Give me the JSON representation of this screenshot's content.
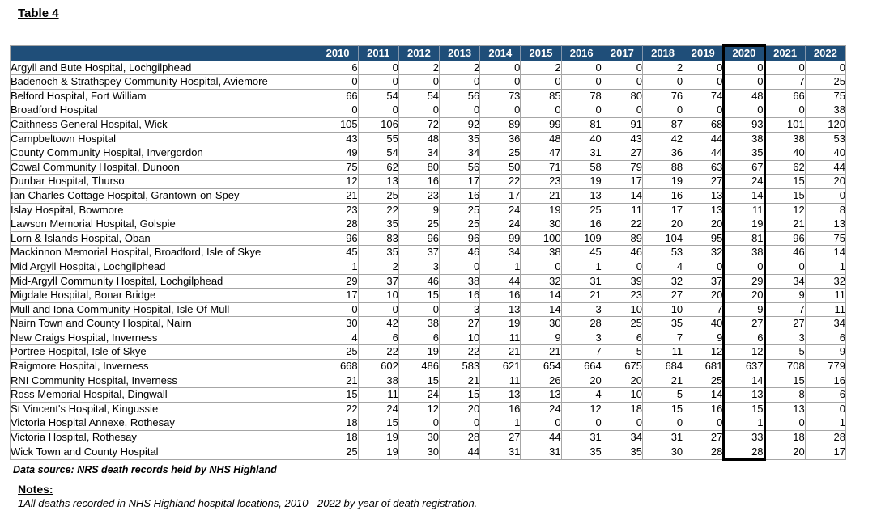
{
  "page": {
    "title": "Table 4",
    "data_source": "Data source: NRS death records held by NHS Highland",
    "notes_heading": "Notes:",
    "note_1": "1All deaths recorded in NHS Highland hospital locations, 2010 - 2022 by year of death registration."
  },
  "colors": {
    "header_bg": "#1F4E79",
    "header_text": "#FFFFFF",
    "grid_line": "#A6A6A6",
    "highlight_box": "#000000"
  },
  "chart_data": {
    "type": "table",
    "title": "Table 4",
    "row_header_label": "",
    "highlighted_column": "2020",
    "columns": [
      "2010",
      "2011",
      "2012",
      "2013",
      "2014",
      "2015",
      "2016",
      "2017",
      "2018",
      "2019",
      "2020",
      "2021",
      "2022"
    ],
    "rows": [
      {
        "hospital": "Argyll and Bute Hospital, Lochgilphead",
        "values": [
          6,
          0,
          2,
          2,
          0,
          2,
          0,
          0,
          2,
          0,
          0,
          0,
          0
        ]
      },
      {
        "hospital": "Badenoch & Strathspey Community Hospital, Aviemore",
        "values": [
          0,
          0,
          0,
          0,
          0,
          0,
          0,
          0,
          0,
          0,
          0,
          7,
          25
        ]
      },
      {
        "hospital": "Belford Hospital, Fort William",
        "values": [
          66,
          54,
          54,
          56,
          73,
          85,
          78,
          80,
          76,
          74,
          48,
          66,
          75
        ]
      },
      {
        "hospital": "Broadford Hospital",
        "values": [
          0,
          0,
          0,
          0,
          0,
          0,
          0,
          0,
          0,
          0,
          0,
          0,
          38
        ]
      },
      {
        "hospital": "Caithness General Hospital, Wick",
        "values": [
          105,
          106,
          72,
          92,
          89,
          99,
          81,
          91,
          87,
          68,
          93,
          101,
          120
        ]
      },
      {
        "hospital": "Campbeltown Hospital",
        "values": [
          43,
          55,
          48,
          35,
          36,
          48,
          40,
          43,
          42,
          44,
          38,
          38,
          53
        ]
      },
      {
        "hospital": "County Community Hospital, Invergordon",
        "values": [
          49,
          54,
          34,
          34,
          25,
          47,
          31,
          27,
          36,
          44,
          35,
          40,
          40
        ]
      },
      {
        "hospital": "Cowal Community Hospital, Dunoon",
        "values": [
          75,
          62,
          80,
          56,
          50,
          71,
          58,
          79,
          88,
          63,
          67,
          62,
          44
        ]
      },
      {
        "hospital": "Dunbar Hospital, Thurso",
        "values": [
          12,
          13,
          16,
          17,
          22,
          23,
          19,
          17,
          19,
          27,
          24,
          15,
          20
        ]
      },
      {
        "hospital": "Ian Charles Cottage Hospital, Grantown-on-Spey",
        "values": [
          21,
          25,
          23,
          16,
          17,
          21,
          13,
          14,
          16,
          13,
          14,
          15,
          0
        ]
      },
      {
        "hospital": "Islay Hospital, Bowmore",
        "values": [
          23,
          22,
          9,
          25,
          24,
          19,
          25,
          11,
          17,
          13,
          11,
          12,
          8
        ]
      },
      {
        "hospital": "Lawson Memorial Hospital, Golspie",
        "values": [
          28,
          35,
          25,
          25,
          24,
          30,
          16,
          22,
          20,
          20,
          19,
          21,
          13
        ]
      },
      {
        "hospital": "Lorn & Islands Hospital, Oban",
        "values": [
          96,
          83,
          96,
          96,
          99,
          100,
          109,
          89,
          104,
          95,
          81,
          96,
          75
        ]
      },
      {
        "hospital": "Mackinnon Memorial Hospital, Broadford, Isle of Skye",
        "values": [
          45,
          35,
          37,
          46,
          34,
          38,
          45,
          46,
          53,
          32,
          38,
          46,
          14
        ]
      },
      {
        "hospital": "Mid Argyll Hospital, Lochgilphead",
        "values": [
          1,
          2,
          3,
          0,
          1,
          0,
          1,
          0,
          4,
          0,
          0,
          0,
          1
        ]
      },
      {
        "hospital": "Mid-Argyll Community Hospital, Lochgilphead",
        "values": [
          29,
          37,
          46,
          38,
          44,
          32,
          31,
          39,
          32,
          37,
          29,
          34,
          32
        ]
      },
      {
        "hospital": "Migdale Hospital, Bonar Bridge",
        "values": [
          17,
          10,
          15,
          16,
          16,
          14,
          21,
          23,
          27,
          20,
          20,
          9,
          11
        ]
      },
      {
        "hospital": "Mull and Iona Community Hospital, Isle Of Mull",
        "values": [
          0,
          0,
          0,
          3,
          13,
          14,
          3,
          10,
          10,
          7,
          9,
          7,
          11
        ]
      },
      {
        "hospital": "Nairn Town and County Hospital, Nairn",
        "values": [
          30,
          42,
          38,
          27,
          19,
          30,
          28,
          25,
          35,
          40,
          27,
          27,
          34
        ]
      },
      {
        "hospital": "New Craigs Hospital, Inverness",
        "values": [
          4,
          6,
          6,
          10,
          11,
          9,
          3,
          6,
          7,
          9,
          6,
          3,
          6
        ]
      },
      {
        "hospital": "Portree Hospital, Isle of Skye",
        "values": [
          25,
          22,
          19,
          22,
          21,
          21,
          7,
          5,
          11,
          12,
          12,
          5,
          9
        ]
      },
      {
        "hospital": "Raigmore Hospital, Inverness",
        "values": [
          668,
          602,
          486,
          583,
          621,
          654,
          664,
          675,
          684,
          681,
          637,
          708,
          779
        ]
      },
      {
        "hospital": "RNI Community Hospital, Inverness",
        "values": [
          21,
          38,
          15,
          21,
          11,
          26,
          20,
          20,
          21,
          25,
          14,
          15,
          16
        ]
      },
      {
        "hospital": "Ross Memorial Hospital, Dingwall",
        "values": [
          15,
          11,
          24,
          15,
          13,
          13,
          4,
          10,
          5,
          14,
          13,
          8,
          6
        ]
      },
      {
        "hospital": "St Vincent's Hospital, Kingussie",
        "values": [
          22,
          24,
          12,
          20,
          16,
          24,
          12,
          18,
          15,
          16,
          15,
          13,
          0
        ]
      },
      {
        "hospital": "Victoria Hospital Annexe, Rothesay",
        "values": [
          18,
          15,
          0,
          0,
          1,
          0,
          0,
          0,
          0,
          0,
          1,
          0,
          1
        ]
      },
      {
        "hospital": "Victoria Hospital, Rothesay",
        "values": [
          18,
          19,
          30,
          28,
          27,
          44,
          31,
          34,
          31,
          27,
          33,
          18,
          28
        ]
      },
      {
        "hospital": "Wick Town and County Hospital",
        "values": [
          25,
          19,
          30,
          44,
          31,
          31,
          35,
          35,
          30,
          28,
          28,
          20,
          17
        ]
      }
    ]
  }
}
